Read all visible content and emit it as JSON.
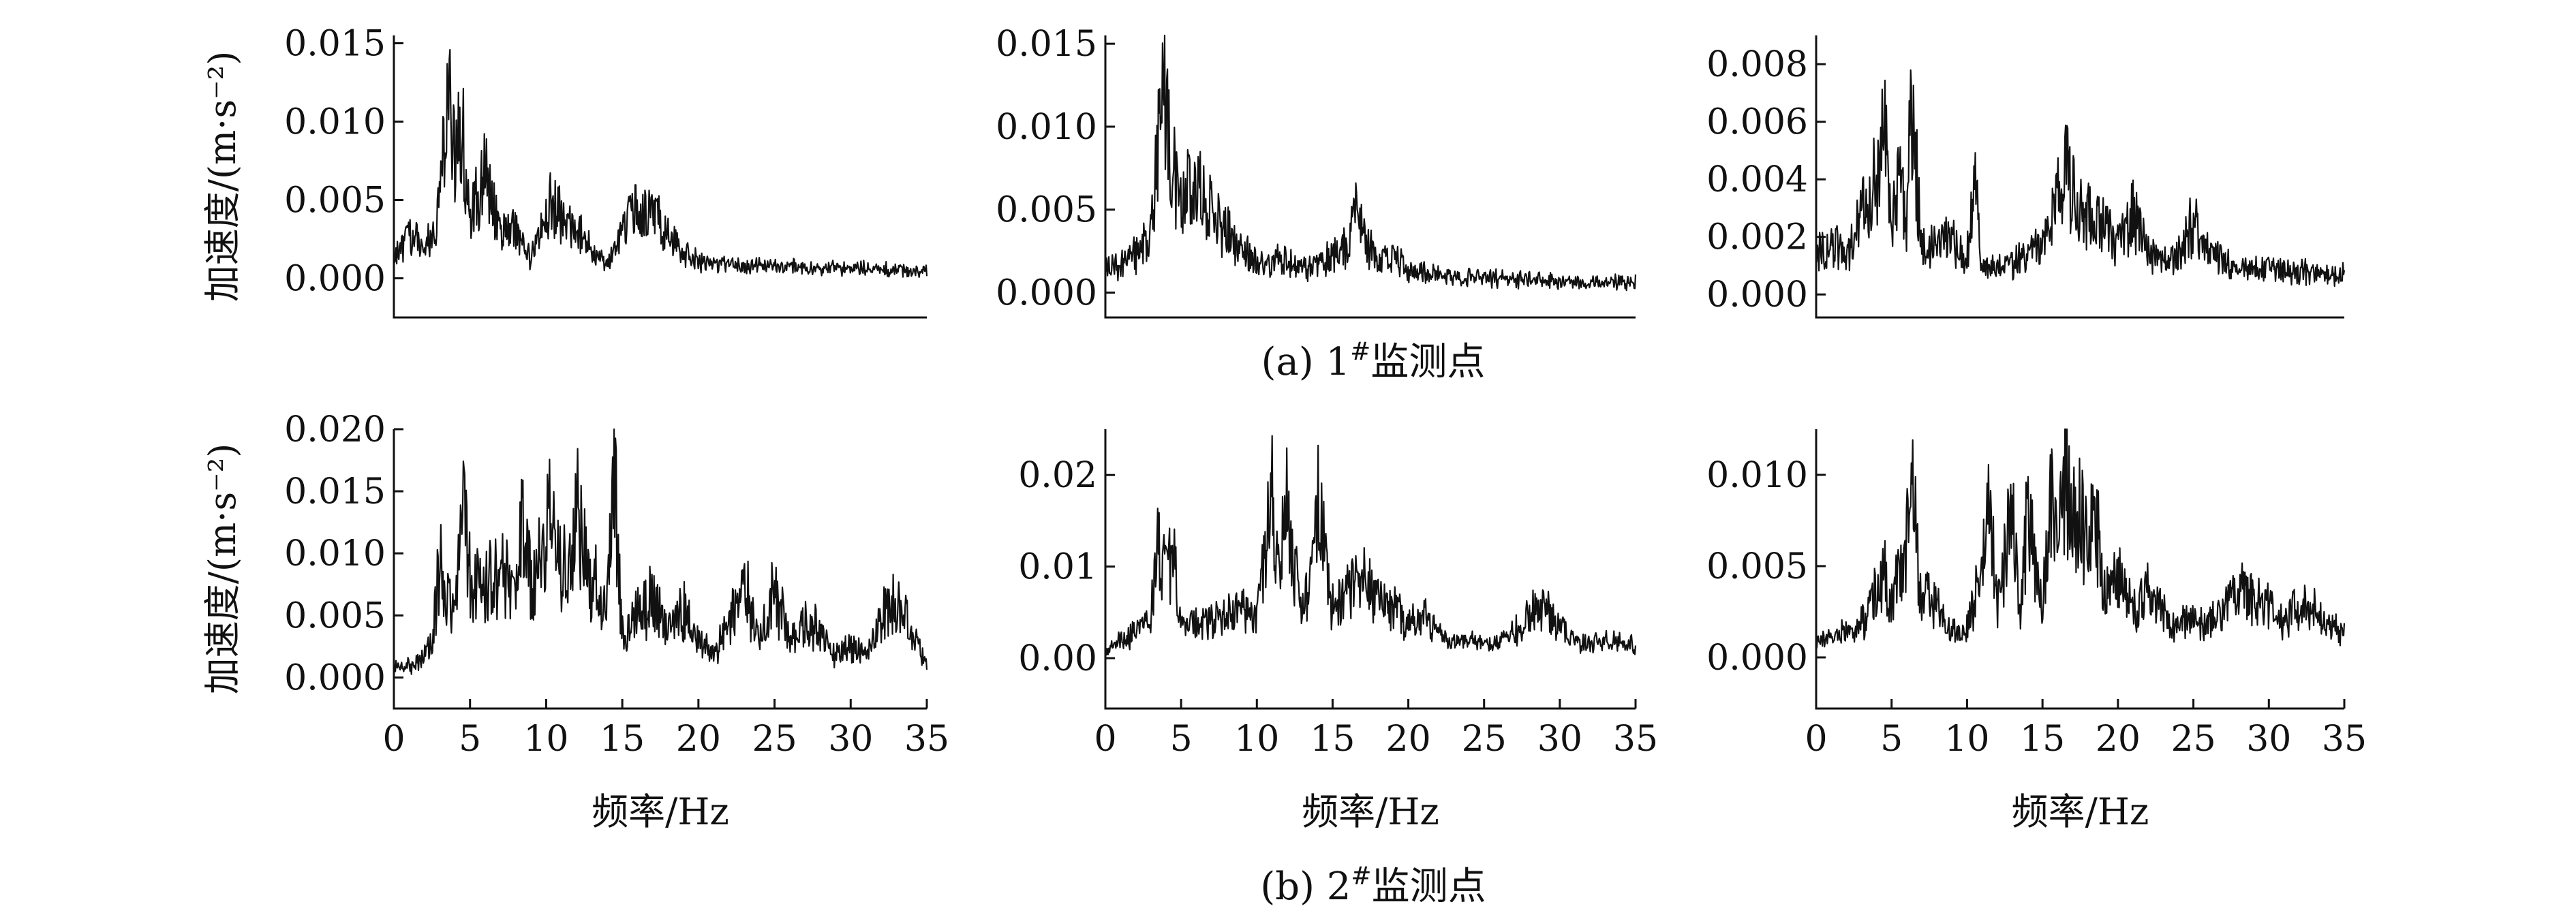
{
  "figure": {
    "row_captions": [
      "(a) 1#监测点",
      "(b) 2#监测点"
    ],
    "caption_parts": [
      {
        "prefix": "(a) 1",
        "sup": "#",
        "suffix": "监测点"
      },
      {
        "prefix": "(b) 2",
        "sup": "#",
        "suffix": "监测点"
      }
    ]
  },
  "chart_data": [
    {
      "type": "line",
      "row": 0,
      "col": 0,
      "ylabel": "加速度/(m·s⁻²)",
      "xlabel": "",
      "xlim": [
        0,
        35
      ],
      "ylim": [
        -0.0025,
        0.0155
      ],
      "yticks": [
        0.0,
        0.005,
        0.01,
        0.015
      ],
      "ytick_labels": [
        "0.000",
        "0.005",
        "0.010",
        "0.015"
      ],
      "xticks": [],
      "xtick_labels": [],
      "grid": false,
      "legend": "none",
      "x": [
        0,
        1,
        2,
        3,
        3.5,
        4,
        4.5,
        5,
        5.5,
        6,
        7,
        8,
        9,
        10,
        10.5,
        11,
        12,
        13,
        14,
        15,
        16,
        17,
        18,
        19,
        20,
        22,
        24,
        26,
        28,
        30,
        32,
        34,
        35
      ],
      "values": [
        0.0015,
        0.003,
        0.002,
        0.005,
        0.013,
        0.009,
        0.01,
        0.004,
        0.006,
        0.0075,
        0.003,
        0.0035,
        0.0012,
        0.0045,
        0.0058,
        0.004,
        0.0035,
        0.002,
        0.0008,
        0.0035,
        0.0052,
        0.0045,
        0.003,
        0.0018,
        0.0012,
        0.001,
        0.0009,
        0.0008,
        0.0007,
        0.0007,
        0.0006,
        0.0005,
        0.0005
      ]
    },
    {
      "type": "line",
      "row": 0,
      "col": 1,
      "ylabel": "",
      "xlabel": "",
      "xlim": [
        0,
        35
      ],
      "ylim": [
        -0.0015,
        0.0155
      ],
      "yticks": [
        0.0,
        0.005,
        0.01,
        0.015
      ],
      "ytick_labels": [
        "0.000",
        "0.005",
        "0.010",
        "0.015"
      ],
      "xticks": [],
      "xtick_labels": [],
      "grid": false,
      "legend": "none",
      "x": [
        0,
        1,
        2,
        3,
        3.5,
        4,
        4.5,
        5,
        6,
        7,
        8,
        9,
        10,
        11,
        12,
        13,
        14,
        15,
        16,
        16.5,
        17,
        18,
        19,
        20,
        22,
        24,
        26,
        28,
        30,
        32,
        34,
        35
      ],
      "values": [
        0.0015,
        0.002,
        0.0025,
        0.004,
        0.01,
        0.0138,
        0.008,
        0.0065,
        0.007,
        0.0055,
        0.004,
        0.003,
        0.002,
        0.002,
        0.0025,
        0.0015,
        0.002,
        0.0025,
        0.003,
        0.006,
        0.004,
        0.002,
        0.0025,
        0.0015,
        0.0012,
        0.001,
        0.0009,
        0.0008,
        0.0008,
        0.0007,
        0.0007,
        0.0007
      ]
    },
    {
      "type": "line",
      "row": 0,
      "col": 2,
      "ylabel": "",
      "xlabel": "",
      "xlim": [
        0,
        35
      ],
      "ylim": [
        -0.0008,
        0.009
      ],
      "yticks": [
        0.0,
        0.002,
        0.004,
        0.006,
        0.008
      ],
      "ytick_labels": [
        "0.000",
        "0.002",
        "0.004",
        "0.006",
        "0.008"
      ],
      "xticks": [],
      "xtick_labels": [],
      "grid": false,
      "legend": "none",
      "x": [
        0,
        1,
        2,
        3,
        4,
        4.5,
        5,
        5.5,
        6,
        6.3,
        7,
        8,
        9,
        10,
        10.5,
        11,
        12,
        13,
        14,
        15,
        16,
        16.5,
        17,
        18,
        19,
        20,
        21,
        22,
        23,
        24,
        25,
        26,
        28,
        30,
        32,
        34,
        35
      ],
      "values": [
        0.0015,
        0.002,
        0.0015,
        0.003,
        0.0045,
        0.0065,
        0.002,
        0.0052,
        0.0025,
        0.0075,
        0.002,
        0.002,
        0.002,
        0.0015,
        0.0045,
        0.001,
        0.001,
        0.0012,
        0.0015,
        0.002,
        0.0035,
        0.0052,
        0.004,
        0.003,
        0.0028,
        0.002,
        0.0032,
        0.0015,
        0.0013,
        0.0015,
        0.0028,
        0.0015,
        0.001,
        0.001,
        0.0009,
        0.0008,
        0.0008
      ]
    },
    {
      "type": "line",
      "row": 1,
      "col": 0,
      "ylabel": "加速度/(m·s⁻²)",
      "xlabel": "频率/Hz",
      "xlim": [
        0,
        35
      ],
      "ylim": [
        -0.0025,
        0.02
      ],
      "yticks": [
        0.0,
        0.005,
        0.01,
        0.015,
        0.02
      ],
      "ytick_labels": [
        "0.000",
        "0.005",
        "0.010",
        "0.015",
        "0.020"
      ],
      "xticks": [
        0,
        5,
        10,
        15,
        20,
        25,
        30,
        35
      ],
      "xtick_labels": [
        "0",
        "5",
        "10",
        "15",
        "20",
        "25",
        "30",
        "35"
      ],
      "grid": false,
      "legend": "none",
      "x": [
        0,
        1,
        2,
        2.5,
        3,
        4,
        4.5,
        5,
        6,
        7,
        8,
        8.5,
        9,
        10,
        10.5,
        11,
        12,
        12.5,
        13,
        14,
        14.5,
        15,
        16,
        17,
        18,
        19,
        20,
        21,
        22,
        23,
        24,
        25,
        26,
        27,
        28,
        29,
        30,
        31,
        32,
        33,
        34,
        35
      ],
      "values": [
        0.001,
        0.001,
        0.002,
        0.003,
        0.01,
        0.006,
        0.015,
        0.009,
        0.008,
        0.01,
        0.006,
        0.0145,
        0.008,
        0.012,
        0.018,
        0.008,
        0.015,
        0.012,
        0.009,
        0.006,
        0.017,
        0.004,
        0.006,
        0.007,
        0.004,
        0.006,
        0.003,
        0.002,
        0.005,
        0.008,
        0.004,
        0.008,
        0.003,
        0.005,
        0.004,
        0.002,
        0.003,
        0.002,
        0.005,
        0.007,
        0.004,
        0.001
      ]
    },
    {
      "type": "line",
      "row": 1,
      "col": 1,
      "ylabel": "",
      "xlabel": "频率/Hz",
      "xlim": [
        0,
        35
      ],
      "ylim": [
        -0.0055,
        0.025
      ],
      "yticks": [
        0.0,
        0.01,
        0.02
      ],
      "ytick_labels": [
        "0.00",
        "0.01",
        "0.02"
      ],
      "xticks": [
        0,
        5,
        10,
        15,
        20,
        25,
        30,
        35
      ],
      "xtick_labels": [
        "0",
        "5",
        "10",
        "15",
        "20",
        "25",
        "30",
        "35"
      ],
      "grid": false,
      "legend": "none",
      "x": [
        0,
        1,
        2,
        3,
        3.5,
        4,
        4.5,
        5,
        6,
        7,
        8,
        9,
        10,
        10.5,
        11,
        11.5,
        12,
        13,
        13.5,
        14,
        15,
        16,
        17,
        18,
        19,
        20,
        21,
        22,
        23,
        24,
        25,
        26,
        27,
        28,
        29,
        30,
        31,
        32,
        33,
        34,
        35
      ],
      "values": [
        0.001,
        0.002,
        0.003,
        0.005,
        0.014,
        0.01,
        0.012,
        0.005,
        0.004,
        0.005,
        0.005,
        0.006,
        0.005,
        0.012,
        0.019,
        0.012,
        0.018,
        0.005,
        0.009,
        0.0195,
        0.006,
        0.008,
        0.01,
        0.007,
        0.006,
        0.004,
        0.005,
        0.003,
        0.002,
        0.002,
        0.002,
        0.002,
        0.003,
        0.0055,
        0.006,
        0.004,
        0.002,
        0.002,
        0.002,
        0.002,
        0.0015
      ]
    },
    {
      "type": "line",
      "row": 1,
      "col": 2,
      "ylabel": "",
      "xlabel": "频率/Hz",
      "xlim": [
        0,
        35
      ],
      "ylim": [
        -0.0028,
        0.0125
      ],
      "yticks": [
        0.0,
        0.005,
        0.01
      ],
      "ytick_labels": [
        "0.000",
        "0.005",
        "0.010"
      ],
      "xticks": [
        0,
        5,
        10,
        15,
        20,
        25,
        30,
        35
      ],
      "xtick_labels": [
        "0",
        "5",
        "10",
        "15",
        "20",
        "25",
        "30",
        "35"
      ],
      "grid": false,
      "legend": "none",
      "x": [
        0,
        1,
        2,
        3,
        4,
        4.5,
        5,
        6,
        6.2,
        7,
        8,
        9,
        10,
        11,
        11.5,
        12,
        13,
        13.5,
        14,
        15,
        15.5,
        16,
        16.5,
        17,
        17.5,
        18,
        18.5,
        19,
        20,
        21,
        22,
        23,
        24,
        25,
        26,
        27,
        28,
        29,
        30,
        31,
        32,
        33,
        34,
        35
      ],
      "values": [
        0.001,
        0.0012,
        0.0015,
        0.002,
        0.004,
        0.0055,
        0.003,
        0.007,
        0.0108,
        0.004,
        0.003,
        0.0015,
        0.002,
        0.005,
        0.009,
        0.003,
        0.009,
        0.002,
        0.0085,
        0.003,
        0.01,
        0.006,
        0.011,
        0.008,
        0.01,
        0.006,
        0.009,
        0.004,
        0.005,
        0.003,
        0.004,
        0.0025,
        0.002,
        0.0025,
        0.002,
        0.003,
        0.004,
        0.0035,
        0.003,
        0.002,
        0.0035,
        0.003,
        0.002,
        0.0015
      ]
    }
  ]
}
